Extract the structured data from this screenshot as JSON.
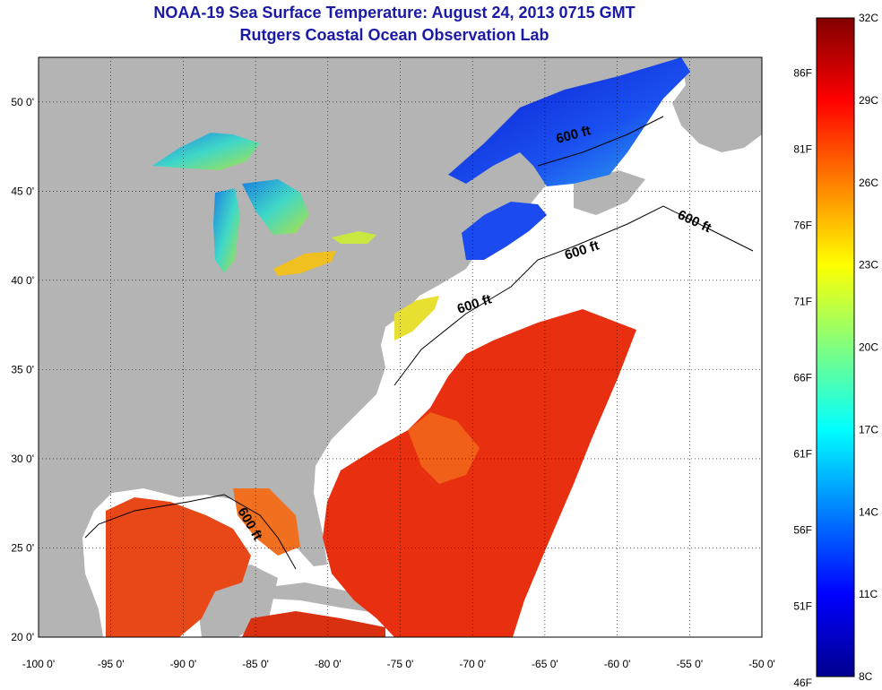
{
  "title": {
    "line1": "NOAA-19 Sea Surface Temperature:  August 24, 2013 0715 GMT",
    "line2": "Rutgers Coastal Ocean Observation Lab"
  },
  "map": {
    "lon_range": [
      -100,
      -50
    ],
    "lat_range": [
      20,
      52.5
    ],
    "x_ticks": [
      "-100 0'",
      "-95 0'",
      "-90 0'",
      "-85 0'",
      "-80 0'",
      "-75 0'",
      "-70 0'",
      "-65 0'",
      "-60 0'",
      "-55 0'",
      "-50 0'"
    ],
    "y_ticks": [
      "50 0'",
      "45 0'",
      "40 0'",
      "35 0'",
      "30 0'",
      "25 0'",
      "20 0'"
    ],
    "contour_labels": [
      "600 ft",
      "600 ft",
      "600 ft",
      "600 ft",
      "600 ft"
    ],
    "colors": {
      "land": "#b4b4b4",
      "no_data": "#ffffff",
      "gridline": "#000000"
    }
  },
  "colorbar": {
    "celsius_labels": [
      "32C",
      "29C",
      "26C",
      "23C",
      "20C",
      "17C",
      "14C",
      "11C",
      "8C"
    ],
    "fahrenheit_labels": [
      "86F",
      "81F",
      "76F",
      "71F",
      "66F",
      "61F",
      "56F",
      "51F",
      "46F"
    ],
    "range_c": [
      8,
      32
    ],
    "colormap": "jet"
  }
}
